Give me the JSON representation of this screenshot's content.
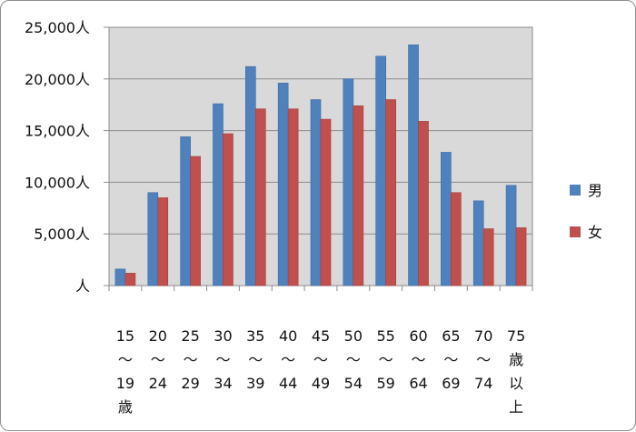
{
  "chart_data": {
    "type": "bar",
    "categories": [
      [
        "15",
        "〜",
        "19",
        "歳"
      ],
      [
        "20",
        "〜",
        "24"
      ],
      [
        "25",
        "〜",
        "29"
      ],
      [
        "30",
        "〜",
        "34"
      ],
      [
        "35",
        "〜",
        "39"
      ],
      [
        "40",
        "〜",
        "44"
      ],
      [
        "45",
        "〜",
        "49"
      ],
      [
        "50",
        "〜",
        "54"
      ],
      [
        "55",
        "〜",
        "59"
      ],
      [
        "60",
        "〜",
        "64"
      ],
      [
        "65",
        "〜",
        "69"
      ],
      [
        "70",
        "〜",
        "74"
      ],
      [
        "75",
        "歳",
        "以",
        "上"
      ]
    ],
    "series": [
      {
        "name": "男",
        "color": "#4f81bd",
        "values": [
          1600,
          9000,
          14400,
          17600,
          21200,
          19600,
          18000,
          20000,
          22200,
          23300,
          12900,
          8200,
          9700
        ]
      },
      {
        "name": "女",
        "color": "#c0504d",
        "values": [
          1200,
          8500,
          12500,
          14700,
          17100,
          17100,
          16100,
          17400,
          18000,
          15900,
          9000,
          5500,
          5600
        ]
      }
    ],
    "ylim": [
      0,
      25000
    ],
    "yticks": [
      0,
      5000,
      10000,
      15000,
      20000,
      25000
    ],
    "ytick_labels": [
      "人",
      "5,000人",
      "10,000人",
      "15,000人",
      "20,000人",
      "25,000人"
    ],
    "grid": true,
    "legend": "right"
  }
}
